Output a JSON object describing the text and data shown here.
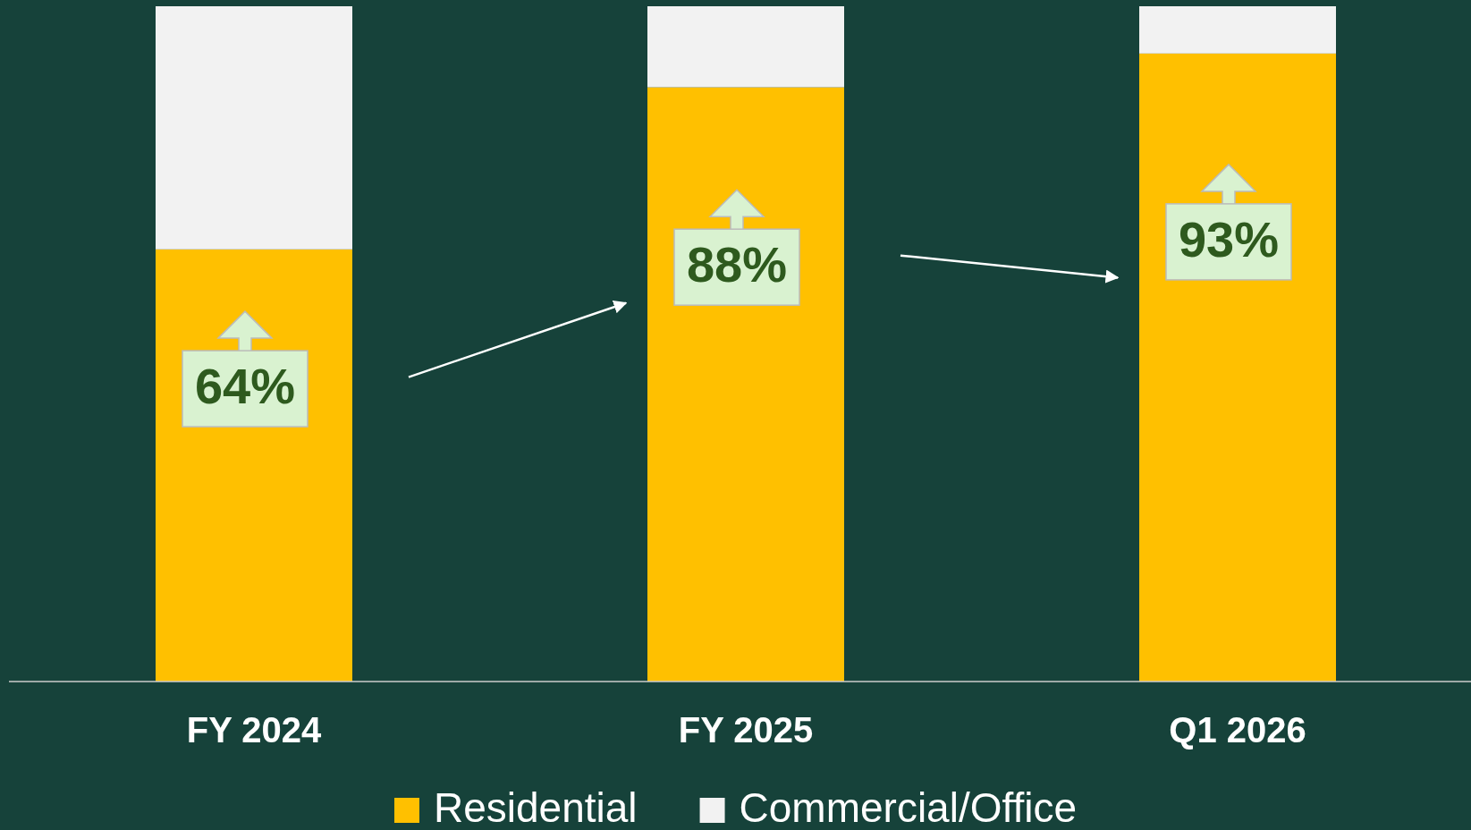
{
  "chart_data": {
    "type": "bar",
    "stacked": true,
    "categories": [
      "FY 2024",
      "FY 2025",
      "Q1 2026"
    ],
    "series": [
      {
        "name": "Residential",
        "color": "#ffc000",
        "values": [
          64,
          88,
          93
        ],
        "value_labels": [
          "64%",
          "88%",
          "93%"
        ]
      },
      {
        "name": "Commercial/Office",
        "color": "#f2f2f2",
        "values": [
          36,
          12,
          7
        ]
      }
    ],
    "ylim": [
      0,
      100
    ],
    "tick_labels": "x",
    "legend": "bottom"
  }
}
